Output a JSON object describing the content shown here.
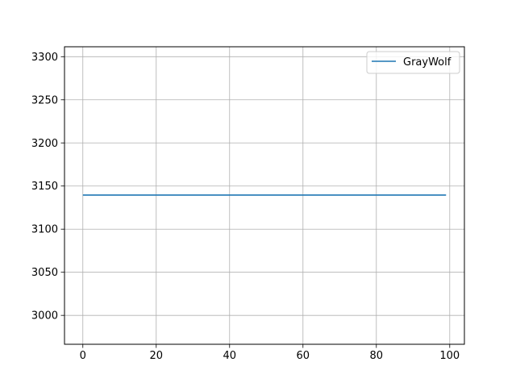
{
  "chart_data": {
    "type": "line",
    "title": "",
    "xlabel": "",
    "ylabel": "",
    "xlim": [
      -5,
      104
    ],
    "ylim": [
      2966.5,
      3311.5
    ],
    "x_ticks": [
      0,
      20,
      40,
      60,
      80,
      100
    ],
    "y_ticks": [
      3000,
      3050,
      3100,
      3150,
      3200,
      3250,
      3300
    ],
    "x_tick_labels": [
      "0",
      "20",
      "40",
      "60",
      "80",
      "100"
    ],
    "y_tick_labels": [
      "3000",
      "3050",
      "3100",
      "3150",
      "3200",
      "3250",
      "3300"
    ],
    "grid": true,
    "legend_position": "top-right",
    "series": [
      {
        "name": "GrayWolf",
        "color": "#1f77b4",
        "x": [
          0,
          99
        ],
        "y": [
          3139.5,
          3139.5
        ]
      }
    ]
  }
}
